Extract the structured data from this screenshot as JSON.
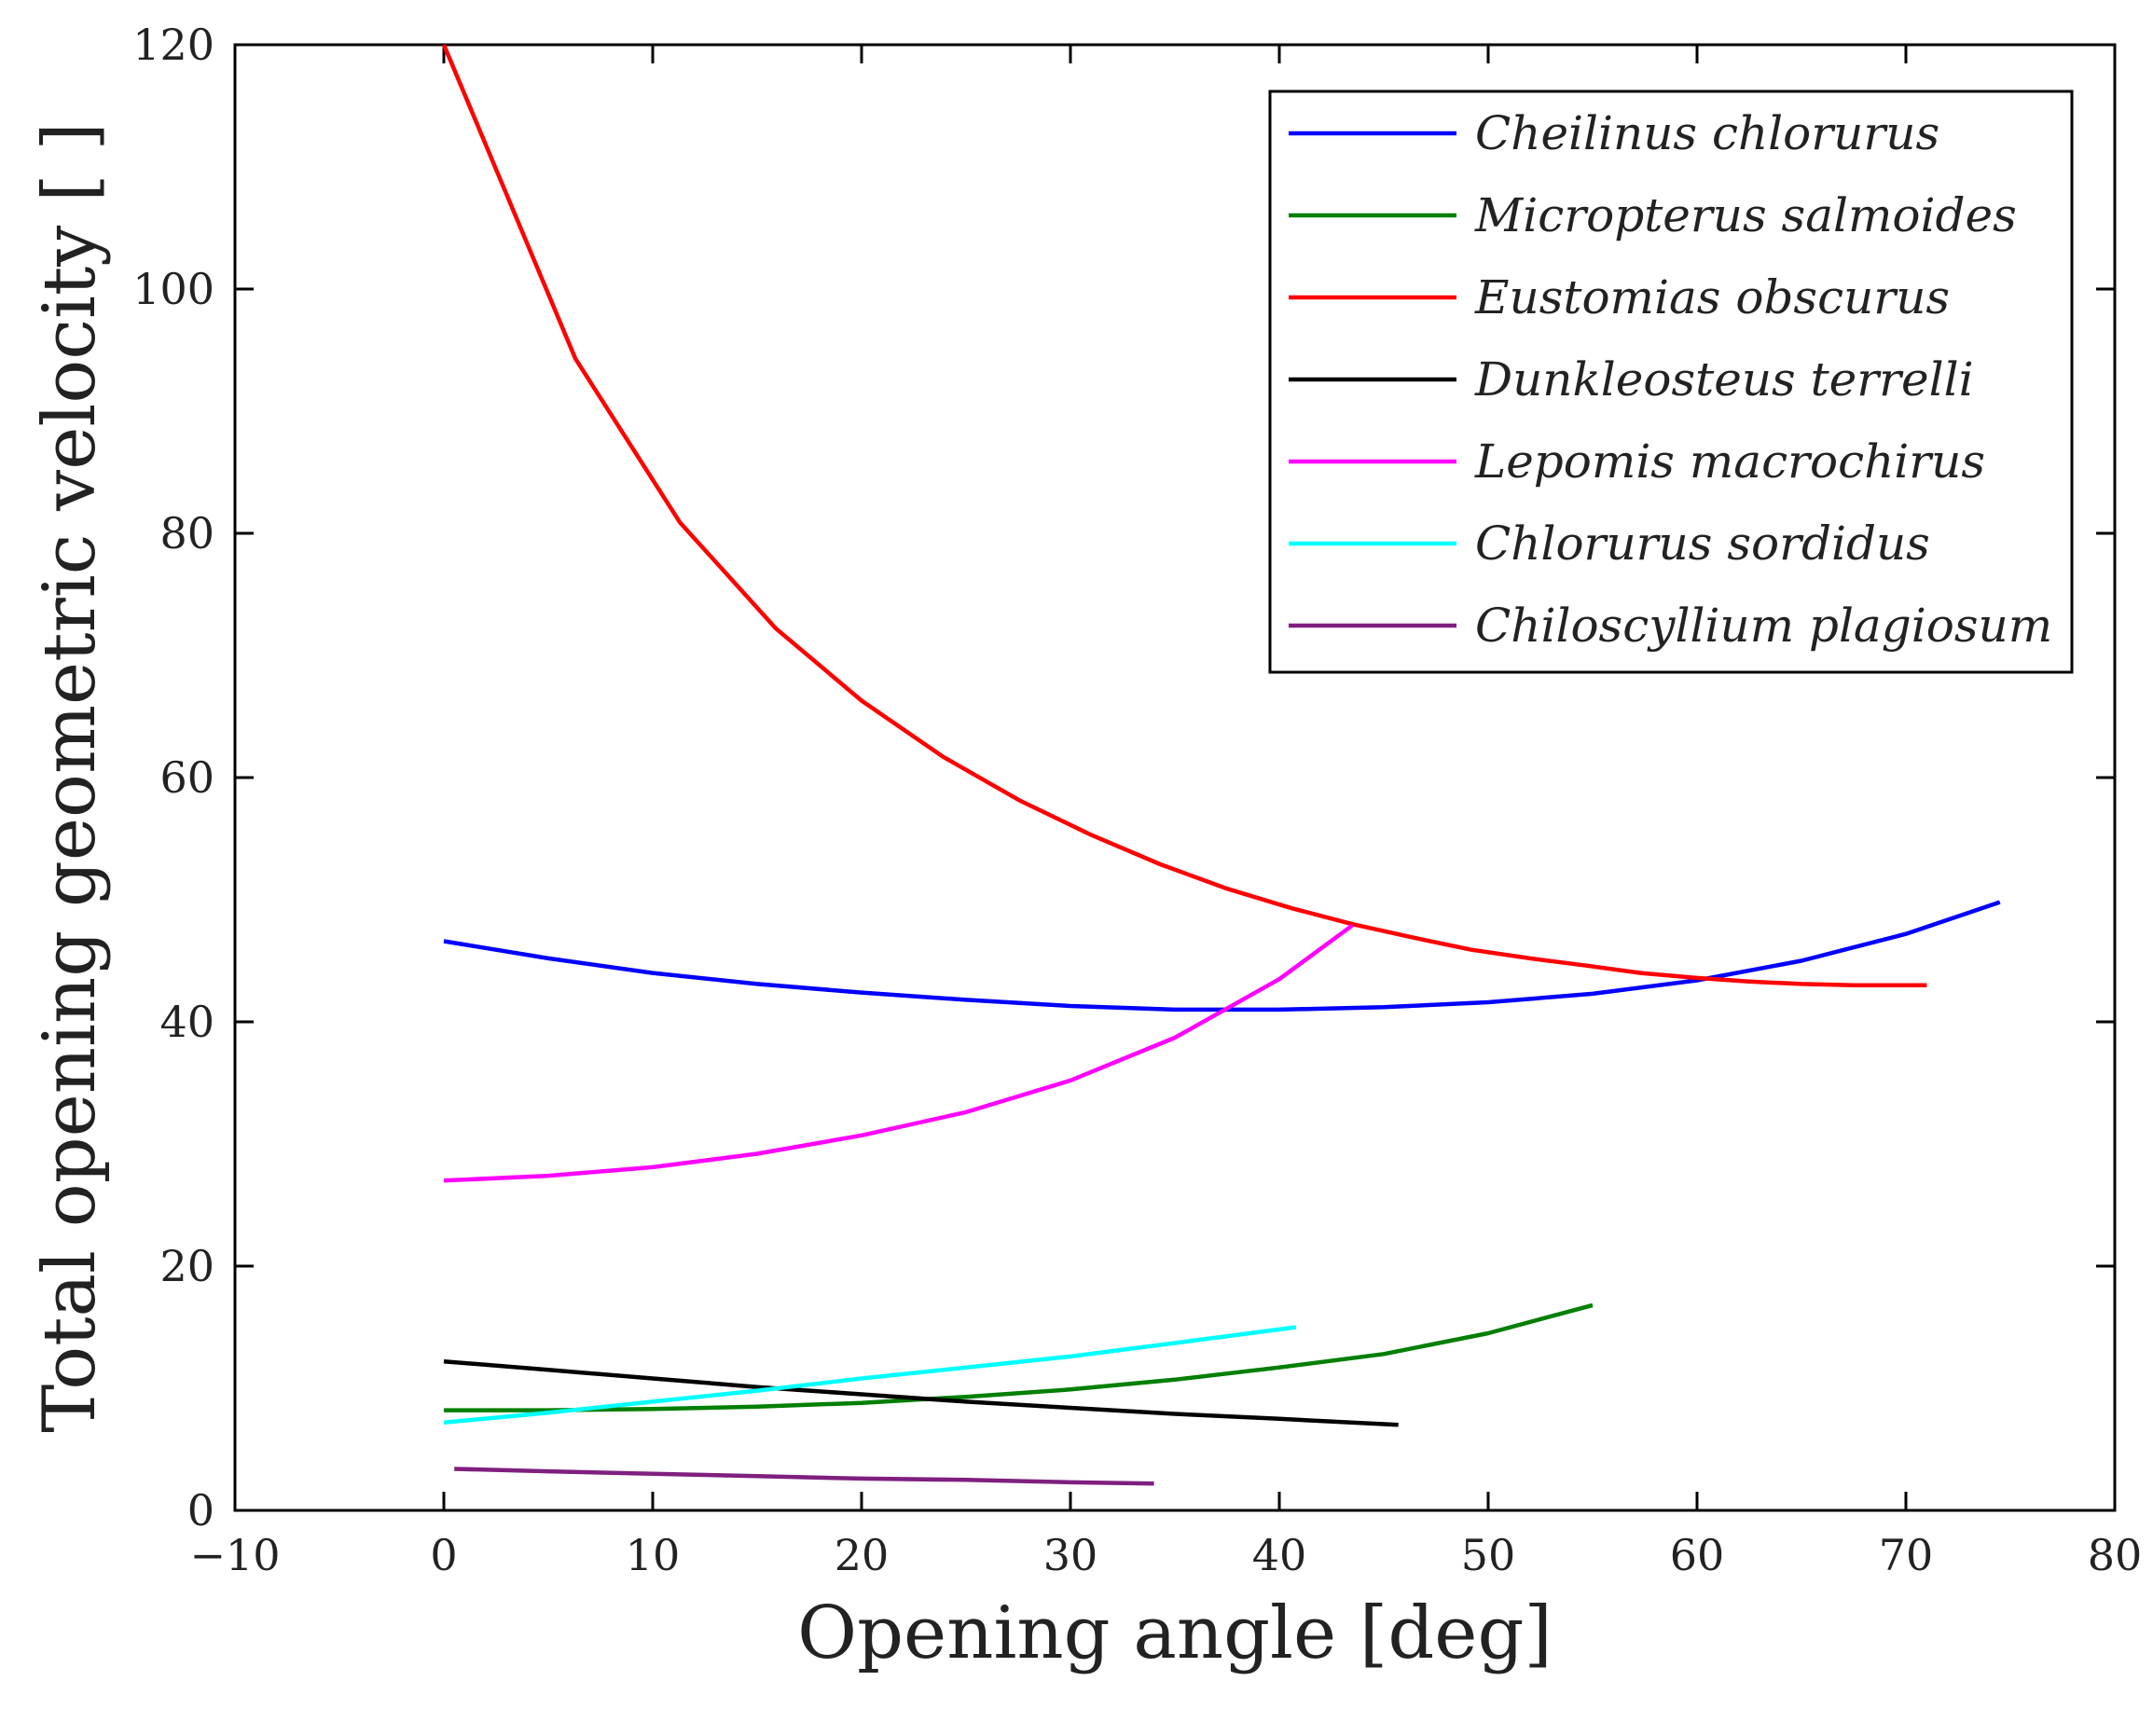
{
  "chart_data": {
    "type": "line",
    "title": "",
    "xlabel": "Opening angle [deg]",
    "ylabel": "Total opening geometric velocity [ ]",
    "xlim": [
      -10,
      80
    ],
    "ylim": [
      0,
      120
    ],
    "xticks": [
      -10,
      0,
      10,
      20,
      30,
      40,
      50,
      60,
      70,
      80
    ],
    "xtick_labels": [
      "−10",
      "0",
      "10",
      "20",
      "30",
      "40",
      "50",
      "60",
      "70",
      "80"
    ],
    "yticks": [
      0,
      20,
      40,
      60,
      80,
      100,
      120
    ],
    "ytick_labels": [
      "0",
      "20",
      "40",
      "60",
      "80",
      "100",
      "120"
    ],
    "grid": false,
    "legend_position": "top-right",
    "series": [
      {
        "name": "Cheilinus chlorurus",
        "color": "#0000ff",
        "x": [
          0,
          5,
          10,
          15,
          20,
          25,
          30,
          35,
          40,
          45,
          50,
          55,
          60,
          65,
          70,
          74.5
        ],
        "y": [
          46.6,
          45.2,
          44.0,
          43.1,
          42.4,
          41.8,
          41.3,
          41.0,
          41.0,
          41.2,
          41.6,
          42.3,
          43.4,
          45.0,
          47.2,
          49.8
        ]
      },
      {
        "name": "Micropterus salmoides",
        "color": "#007f00",
        "x": [
          0,
          5,
          10,
          15,
          20,
          25,
          30,
          35,
          40,
          45,
          50,
          55
        ],
        "y": [
          8.2,
          8.2,
          8.3,
          8.5,
          8.8,
          9.3,
          9.9,
          10.7,
          11.7,
          12.8,
          14.5,
          16.8
        ]
      },
      {
        "name": "Eustomias obscurus",
        "color": "#ff0000",
        "x": [
          0,
          6.3,
          11.3,
          15.9,
          20,
          23.9,
          27.6,
          31,
          34.3,
          37.5,
          40.6,
          43.5,
          46.4,
          49.2,
          52,
          54.7,
          57.3,
          59.9,
          62.5,
          65,
          67.5,
          69.8,
          71
        ],
        "y": [
          120,
          94.3,
          80.9,
          72.2,
          66.3,
          61.7,
          58.1,
          55.3,
          52.9,
          50.9,
          49.3,
          48.0,
          46.9,
          45.9,
          45.2,
          44.6,
          44.0,
          43.6,
          43.3,
          43.1,
          43.0,
          43.0,
          43.0
        ]
      },
      {
        "name": "Dunkleosteus terrelli",
        "color": "#000000",
        "x": [
          0,
          5,
          10,
          15,
          20,
          25,
          30,
          35,
          40,
          45.7
        ],
        "y": [
          12.2,
          11.5,
          10.8,
          10.1,
          9.5,
          8.9,
          8.4,
          7.9,
          7.5,
          7.0
        ]
      },
      {
        "name": "Lepomis macrochirus",
        "color": "#ff00ff",
        "x": [
          0,
          5,
          10,
          15,
          20,
          25,
          30,
          35,
          40,
          43.5
        ],
        "y": [
          27.0,
          27.4,
          28.1,
          29.2,
          30.7,
          32.6,
          35.2,
          38.7,
          43.5,
          47.9
        ]
      },
      {
        "name": "Chlorurus sordidus",
        "color": "#00ffff",
        "x": [
          0,
          5,
          10,
          15,
          20,
          25,
          30,
          35,
          40.8
        ],
        "y": [
          7.2,
          8.0,
          8.9,
          9.8,
          10.8,
          11.7,
          12.6,
          13.7,
          15.0
        ]
      },
      {
        "name": "Chiloscyllium plagiosum",
        "color": "#7f1f7f",
        "x": [
          0.5,
          5,
          10,
          15,
          20,
          25,
          30,
          34
        ],
        "y": [
          3.4,
          3.2,
          3.0,
          2.8,
          2.6,
          2.5,
          2.3,
          2.2
        ]
      }
    ]
  }
}
